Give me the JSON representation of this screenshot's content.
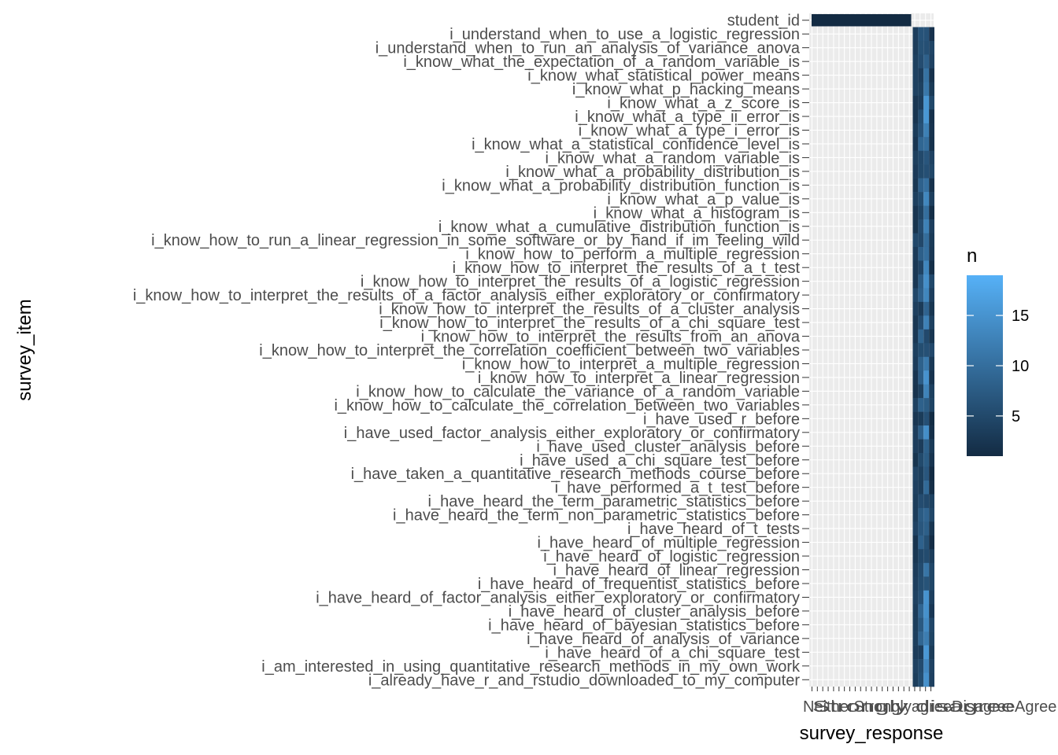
{
  "chart_data": {
    "type": "heatmap",
    "x_label": "survey_response",
    "y_label": "survey_item",
    "y_categories": [
      "student_id",
      "i_understand_when_to_use_a_logistic_regression",
      "i_understand_when_to_run_an_analysis_of_variance_anova",
      "i_know_what_the_expectation_of_a_random_variable_is",
      "i_know_what_statistical_power_means",
      "i_know_what_p_hacking_means",
      "i_know_what_a_z_score_is",
      "i_know_what_a_type_ii_error_is",
      "i_know_what_a_type_i_error_is",
      "i_know_what_a_statistical_confidence_level_is",
      "i_know_what_a_random_variable_is",
      "i_know_what_a_probability_distribution_is",
      "i_know_what_a_probability_distribution_function_is",
      "i_know_what_a_p_value_is",
      "i_know_what_a_histogram_is",
      "i_know_what_a_cumulative_distribution_function_is",
      "i_know_how_to_run_a_linear_regression_in_some_software_or_by_hand_if_im_feeling_wild",
      "i_know_how_to_perform_a_multiple_regression",
      "i_know_how_to_interpret_the_results_of_a_t_test",
      "i_know_how_to_interpret_the_results_of_a_logistic_regression",
      "i_know_how_to_interpret_the_results_of_a_factor_analysis_either_exploratory_or_confirmatory",
      "i_know_how_to_interpret_the_results_of_a_cluster_analysis",
      "i_know_how_to_interpret_the_results_of_a_chi_square_test",
      "i_know_how_to_interpret_the_results_from_an_anova",
      "i_know_how_to_interpret_the_correlation_coefficient_between_two_variables",
      "i_know_how_to_interpret_a_multiple_regression",
      "i_know_how_to_interpret_a_linear_regression",
      "i_know_how_to_calculate_the_variance_of_a_random_variable",
      "i_know_how_to_calculate_the_correlation_between_two_variables",
      "i_have_used_r_before",
      "i_have_used_factor_analysis_either_exploratory_or_confirmatory",
      "i_have_used_cluster_analysis_before",
      "i_have_used_a_chi_square_test_before",
      "i_have_taken_a_quantitative_research_methods_course_before",
      "i_have_performed_a_t_test_before",
      "i_have_heard_the_term_parametric_statistics_before",
      "i_have_heard_the_term_non_parametric_statistics_before",
      "i_have_heard_of_t_tests",
      "i_have_heard_of_multiple_regression",
      "i_have_heard_of_logistic_regression",
      "i_have_heard_of_linear_regression",
      "i_have_heard_of_frequentist_statistics_before",
      "i_have_heard_of_factor_analysis_either_exploratory_or_confirmatory",
      "i_have_heard_of_cluster_analysis_before",
      "i_have_heard_of_bayesian_statistics_before",
      "i_have_heard_of_analysis_of_variance",
      "i_have_heard_of_a_chi_square_test",
      "i_am_interested_in_using_quantitative_research_methods_in_my_own_work",
      "i_already_have_r_and_rstudio_downloaded_to_my_computer"
    ],
    "x_tick_text": "NeitherStronglyagreeDisagreeAgreeNoYes",
    "x_tick_text_extra": "Strongly disagree",
    "legend": {
      "title": "n",
      "ticks": [
        5,
        10,
        15
      ],
      "min": 1,
      "max": 19,
      "position": "right",
      "color_low": "#132b43",
      "color_high": "#56b1f7"
    },
    "n_columns": 23,
    "n_rows": 49,
    "student_id_span": 19,
    "response_columns": 4
  }
}
